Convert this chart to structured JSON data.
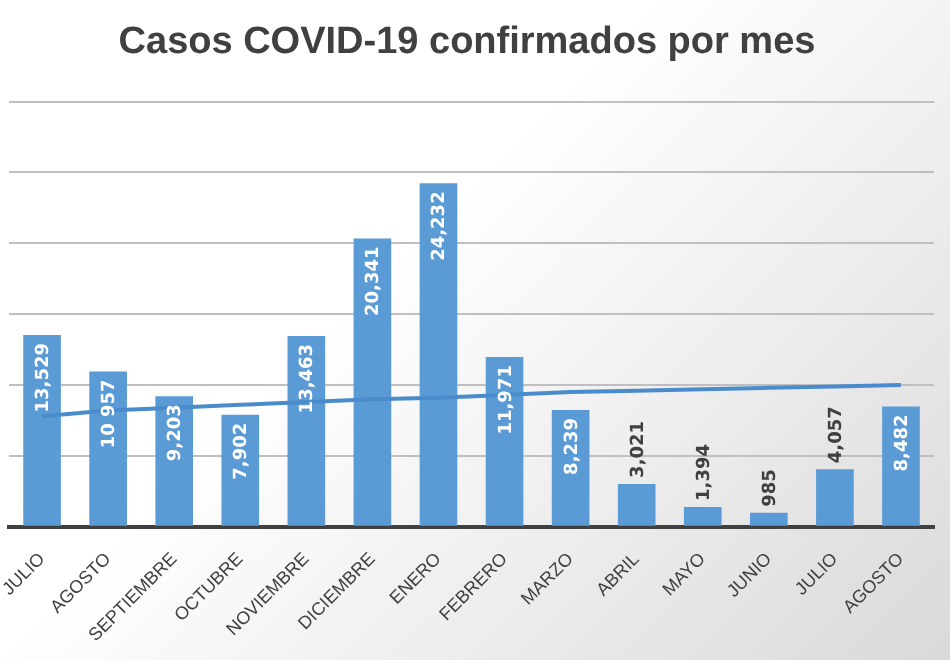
{
  "chart_data": {
    "type": "bar",
    "title": "Casos COVID-19 confirmados por mes",
    "categories": [
      "JULIO",
      "AGOSTO",
      "SEPTIEMBRE",
      "OCTUBRE",
      "NOVIEMBRE",
      "DICIEMBRE",
      "ENERO",
      "FEBRERO",
      "MARZO",
      "ABRIL",
      "MAYO",
      "JUNIO",
      "JULIO",
      "AGOSTO"
    ],
    "series": [
      {
        "color": "#5b9bd5",
        "values": [
          13529,
          10957,
          9203,
          7902,
          13463,
          20341,
          24232,
          11971,
          8239,
          3021,
          1394,
          985,
          4057,
          8482
        ],
        "value_labels": [
          "13,529",
          "10 957",
          "9,203",
          "7,902",
          "13,463",
          "20,341",
          "24,232",
          "11,971",
          "8,239",
          "3,021",
          "1,394",
          "985",
          "4,057",
          "8,482"
        ]
      },
      {
        "type": "line",
        "color": "#4a8ccb",
        "values": [
          7800,
          8200,
          8400,
          8600,
          8800,
          9000,
          9100,
          9300,
          9500,
          9600,
          9700,
          9800,
          9900,
          10000
        ]
      }
    ],
    "ylim": [
      0,
      30000
    ],
    "yticks": [
      {
        "value": 0,
        "label": null
      },
      {
        "value": 5000,
        "label": null
      },
      {
        "value": 10000,
        "label": null
      },
      {
        "value": 15000,
        "label": null
      },
      {
        "value": 20000,
        "label": null
      },
      {
        "value": 25000,
        "label": null
      },
      {
        "value": 30000,
        "label": null
      }
    ],
    "grid": "y",
    "legend": false,
    "tick_labels": "x",
    "marker": "none"
  }
}
